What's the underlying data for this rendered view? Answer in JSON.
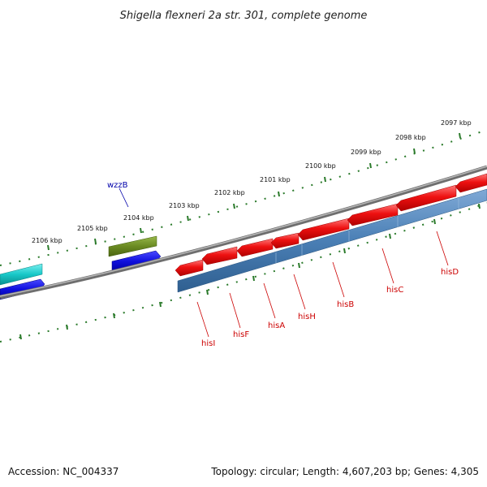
{
  "title": "Shigella flexneri 2a str. 301, complete genome",
  "footer": {
    "accession": "Accession: NC_004337",
    "stats": "Topology: circular; Length: 4,607,203 bp; Genes: 4,305"
  },
  "ruler": {
    "ticks": [
      {
        "label": "2106 kbp"
      },
      {
        "label": "2105 kbp"
      },
      {
        "label": "2104 kbp"
      },
      {
        "label": "2103 kbp"
      },
      {
        "label": "2102 kbp"
      },
      {
        "label": "2101 kbp"
      },
      {
        "label": "2100 kbp"
      },
      {
        "label": "2099 kbp"
      },
      {
        "label": "2098 kbp"
      },
      {
        "label": "2097 kbp"
      }
    ]
  },
  "genes": {
    "wzzB": {
      "label": "wzzB",
      "color": "#0000aa"
    },
    "his": [
      {
        "label": "hisI"
      },
      {
        "label": "hisF"
      },
      {
        "label": "hisA"
      },
      {
        "label": "hisH"
      },
      {
        "label": "hisB"
      },
      {
        "label": "hisC"
      },
      {
        "label": "hisD"
      }
    ]
  },
  "colors": {
    "gene_red": "#ee1111",
    "cds_blue": "#4a7fb5",
    "cds_dark_blue": "#1a1acc",
    "cds_cyan": "#18c8c8",
    "cds_olive": "#6a8a22",
    "backbone": "#808080",
    "ruler": "#2a7a2a",
    "his_label": "#cc0000"
  }
}
